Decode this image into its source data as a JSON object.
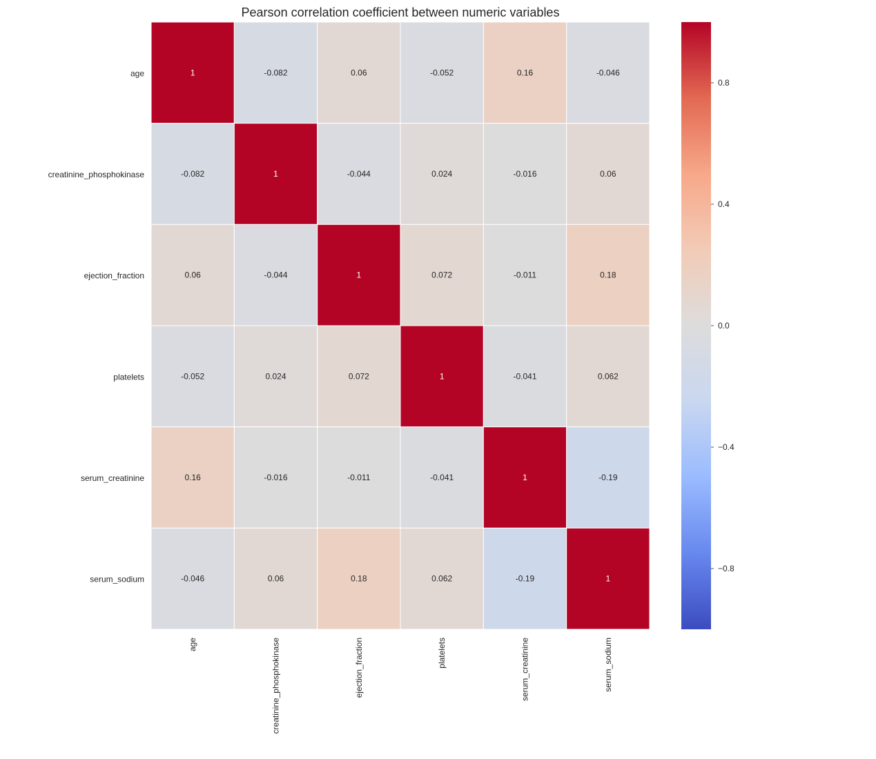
{
  "chart_data": {
    "type": "heatmap",
    "title": "Pearson correlation coefficient between numeric variables",
    "xlabel": "",
    "ylabel": "",
    "row_labels": [
      "age",
      "creatinine_phosphokinase",
      "ejection_fraction",
      "platelets",
      "serum_creatinine",
      "serum_sodium"
    ],
    "col_labels": [
      "age",
      "creatinine_phosphokinase",
      "ejection_fraction",
      "platelets",
      "serum_creatinine",
      "serum_sodium"
    ],
    "values": [
      [
        1,
        -0.082,
        0.06,
        -0.052,
        0.16,
        -0.046
      ],
      [
        -0.082,
        1,
        -0.044,
        0.024,
        -0.016,
        0.06
      ],
      [
        0.06,
        -0.044,
        1,
        0.072,
        -0.011,
        0.18
      ],
      [
        -0.052,
        0.024,
        0.072,
        1,
        -0.041,
        0.062
      ],
      [
        0.16,
        -0.016,
        -0.011,
        -0.041,
        1,
        -0.19
      ],
      [
        -0.046,
        0.06,
        0.18,
        0.062,
        -0.19,
        1
      ]
    ],
    "value_labels": [
      [
        "1",
        "-0.082",
        "0.06",
        "-0.052",
        "0.16",
        "-0.046"
      ],
      [
        "-0.082",
        "1",
        "-0.044",
        "0.024",
        "-0.016",
        "0.06"
      ],
      [
        "0.06",
        "-0.044",
        "1",
        "0.072",
        "-0.011",
        "0.18"
      ],
      [
        "-0.052",
        "0.024",
        "0.072",
        "1",
        "-0.041",
        "0.062"
      ],
      [
        "0.16",
        "-0.016",
        "-0.011",
        "-0.041",
        "1",
        "-0.19"
      ],
      [
        "-0.046",
        "0.06",
        "0.18",
        "0.062",
        "-0.19",
        "1"
      ]
    ],
    "colormap": "coolwarm",
    "colormap_stops": [
      "#3b4cc0",
      "#6788ee",
      "#9abbff",
      "#c9d7f0",
      "#dddcdc",
      "#f2cbb7",
      "#f7a889",
      "#e26952",
      "#b40426"
    ],
    "vmin": -1,
    "vmax": 1,
    "colorbar": {
      "ticks": [
        0.8,
        0.4,
        0.0,
        -0.4,
        -0.8
      ],
      "tick_labels": [
        "0.8",
        "0.4",
        "0.0",
        "−0.4",
        "−0.8"
      ]
    },
    "grid": false,
    "annotations": true
  }
}
